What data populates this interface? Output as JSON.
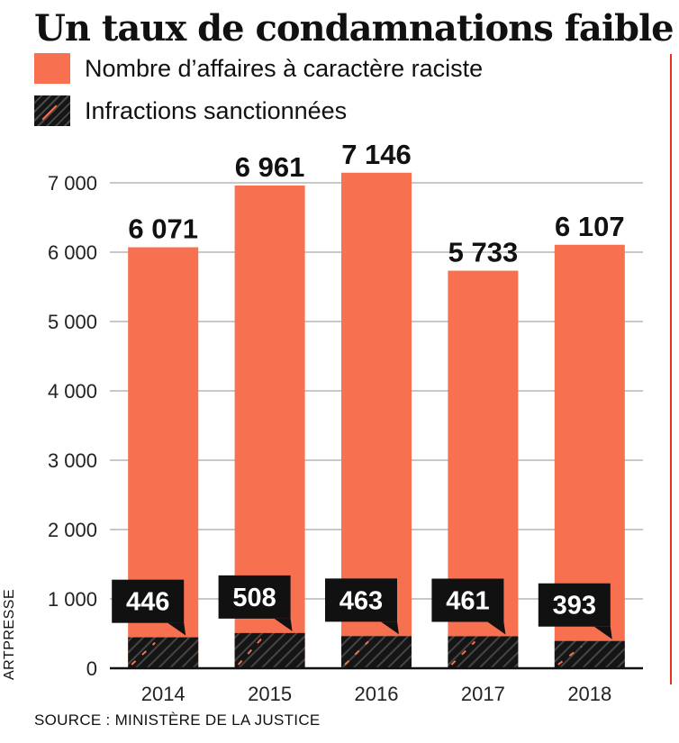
{
  "title": "Un taux de condamnations faible",
  "legend": [
    {
      "label": "Nombre d’affaires à caractère raciste",
      "color": "#f7704f"
    },
    {
      "label": "Infractions sanctionnées",
      "color": "#151515"
    }
  ],
  "source": "SOURCE : MINISTÈRE DE LA JUSTICE",
  "credit": "ARTPRESSE",
  "chart_data": {
    "type": "bar",
    "categories": [
      "2014",
      "2015",
      "2016",
      "2017",
      "2018"
    ],
    "series": [
      {
        "name": "Nombre d’affaires à caractère raciste",
        "values": [
          6071,
          6961,
          7146,
          5733,
          6107
        ],
        "color": "#f7704f"
      },
      {
        "name": "Infractions sanctionnées",
        "values": [
          446,
          508,
          463,
          461,
          393
        ],
        "color": "#151515"
      }
    ],
    "value_labels": {
      "affaires": [
        "6 071",
        "6 961",
        "7 146",
        "5 733",
        "6 107"
      ],
      "infractions": [
        "446",
        "508",
        "463",
        "461",
        "393"
      ]
    },
    "yticks": [
      0,
      1000,
      2000,
      3000,
      4000,
      5000,
      6000,
      7000
    ],
    "ytick_labels": [
      "0",
      "1 000",
      "2 000",
      "3 000",
      "4 000",
      "5 000",
      "6 000",
      "7 000"
    ],
    "ylim": [
      0,
      7000
    ],
    "grid": true,
    "legend_position": "top-left"
  }
}
